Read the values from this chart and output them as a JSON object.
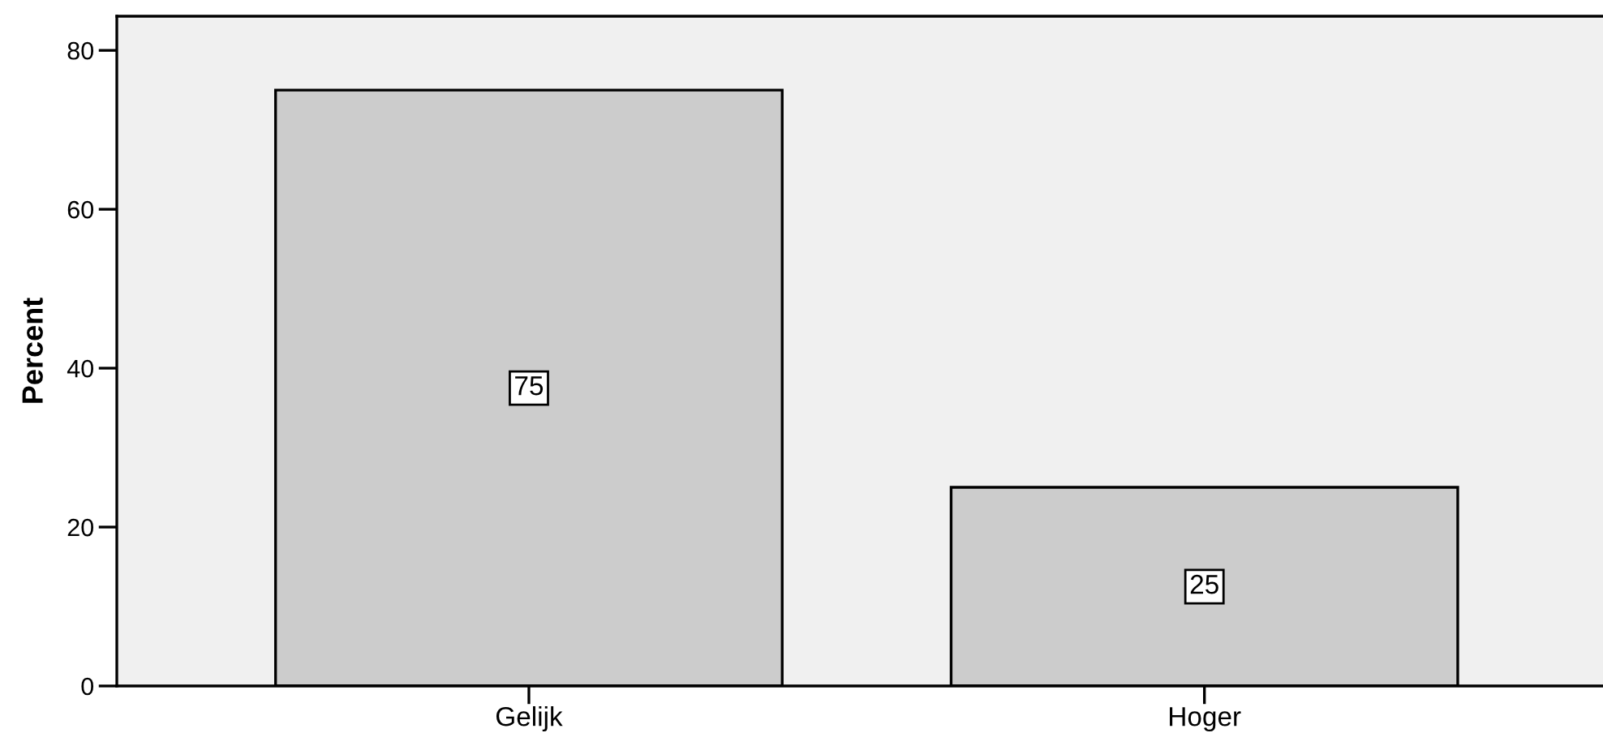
{
  "chart_data": {
    "type": "bar",
    "ylabel": "Percent",
    "categories": [
      "Gelijk",
      "Hoger"
    ],
    "values": [
      75,
      25
    ],
    "color": "#cccccc",
    "ylim": [
      0,
      84.3
    ],
    "yticks": [
      0,
      20,
      40,
      60,
      80
    ],
    "data_labels": true,
    "grid": false,
    "legend": false
  }
}
